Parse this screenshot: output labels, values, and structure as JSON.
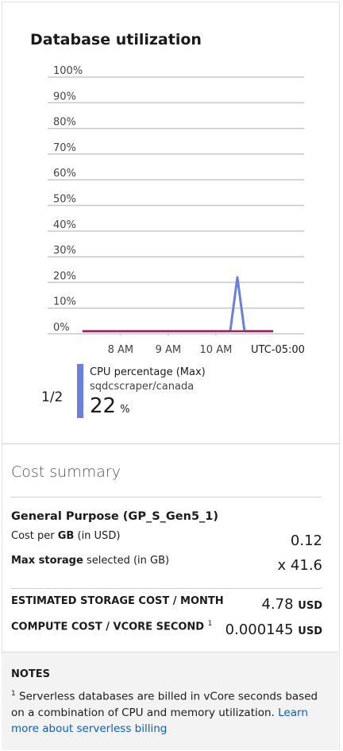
{
  "title": "Database utilization",
  "chart_data": {
    "type": "line",
    "series": [
      {
        "name": "CPU percentage (Max)",
        "color": "#6b7fe3",
        "x": [
          7.2,
          10.3,
          10.45,
          10.6,
          11.2
        ],
        "values": [
          1,
          1,
          22,
          1,
          1
        ]
      },
      {
        "color": "#c2185b",
        "x": [
          7.2,
          11.2
        ],
        "values": [
          1,
          1
        ]
      }
    ],
    "xlim": [
      6.47,
      11.85
    ],
    "xticks": [
      {
        "value": 8,
        "label": "8 AM"
      },
      {
        "value": 9,
        "label": "9 AM"
      },
      {
        "value": 10,
        "label": "10 AM"
      }
    ],
    "timezone": "UTC-05:00",
    "ylim": [
      0,
      100
    ],
    "yticks": [
      {
        "value": 0,
        "label": "0%"
      },
      {
        "value": 10,
        "label": "10%"
      },
      {
        "value": 20,
        "label": "20%"
      },
      {
        "value": 30,
        "label": "30%"
      },
      {
        "value": 40,
        "label": "40%"
      },
      {
        "value": 50,
        "label": "50%"
      },
      {
        "value": 60,
        "label": "60%"
      },
      {
        "value": 70,
        "label": "70%"
      },
      {
        "value": 80,
        "label": "80%"
      },
      {
        "value": 90,
        "label": "90%"
      },
      {
        "value": 100,
        "label": "100%"
      }
    ],
    "grid": true
  },
  "legend": {
    "pager": "1/2",
    "resource": "sqdcscraper/canada",
    "value": "22",
    "unit": "%"
  },
  "cost_summary": {
    "title": "Cost summary",
    "tier": "General Purpose (GP_S_Gen5_1)",
    "cost_per_gb": {
      "label_pre": "Cost per ",
      "label_bold": "GB",
      "label_post": " (in USD)",
      "value": "0.12"
    },
    "max_storage": {
      "label_bold": "Max storage",
      "label_post": " selected (in GB)",
      "value": "x 41.6"
    },
    "storage_cost": {
      "label": "ESTIMATED STORAGE COST / MONTH",
      "value": "4.78",
      "unit": "USD"
    },
    "compute_cost": {
      "label": "COMPUTE COST / VCORE SECOND",
      "footnote": "1",
      "value": "0.000145",
      "unit": "USD"
    }
  },
  "notes": {
    "title": "NOTES",
    "footnote": "1",
    "text": " Serverless databases are billed in vCore seconds based on a combination of CPU and memory utilization. ",
    "link": "Learn more about serverless billing"
  }
}
